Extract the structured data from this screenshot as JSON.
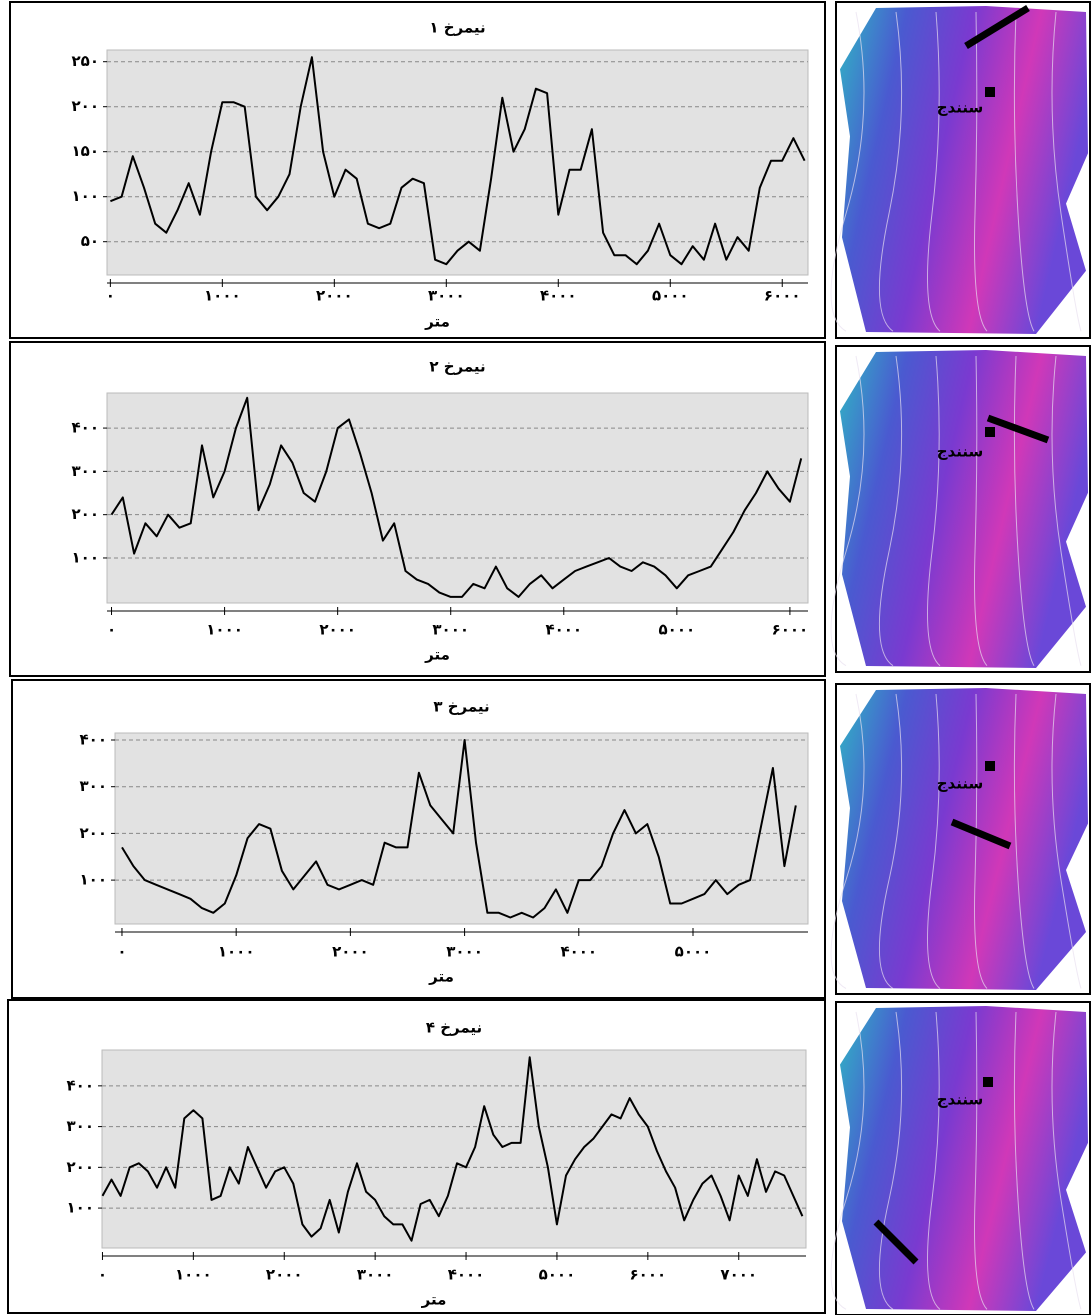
{
  "chart_data": [
    {
      "type": "line",
      "title": "نیمرخ ۱",
      "x_label": "متر",
      "color": "#000000",
      "grid": true,
      "xlim": [
        -30,
        6230
      ],
      "ylim": [
        13,
        263
      ],
      "xticks": [
        {
          "value": 0,
          "label": "۰"
        },
        {
          "value": 1000,
          "label": "۱۰۰۰"
        },
        {
          "value": 2000,
          "label": "۲۰۰۰"
        },
        {
          "value": 3000,
          "label": "۳۰۰۰"
        },
        {
          "value": 4000,
          "label": "۴۰۰۰"
        },
        {
          "value": 5000,
          "label": "۵۰۰۰"
        },
        {
          "value": 6000,
          "label": "۶۰۰۰"
        }
      ],
      "yticks": [
        {
          "value": 50,
          "label": "۵۰"
        },
        {
          "value": 100,
          "label": "۱۰۰"
        },
        {
          "value": 150,
          "label": "۱۵۰"
        },
        {
          "value": 200,
          "label": "۲۰۰"
        },
        {
          "value": 250,
          "label": "۲۵۰"
        }
      ],
      "x": [
        0,
        100,
        200,
        300,
        400,
        500,
        600,
        700,
        800,
        900,
        1000,
        1100,
        1200,
        1300,
        1400,
        1500,
        1600,
        1700,
        1800,
        1900,
        2000,
        2100,
        2200,
        2300,
        2400,
        2500,
        2600,
        2700,
        2800,
        2900,
        3000,
        3100,
        3200,
        3300,
        3400,
        3500,
        3600,
        3700,
        3800,
        3900,
        4000,
        4100,
        4200,
        4300,
        4400,
        4500,
        4600,
        4700,
        4800,
        4900,
        5000,
        5100,
        5200,
        5300,
        5400,
        5500,
        5600,
        5700,
        5800,
        5900,
        6000,
        6100,
        6200
      ],
      "values": [
        95,
        100,
        145,
        110,
        70,
        60,
        85,
        115,
        80,
        150,
        205,
        205,
        200,
        100,
        85,
        100,
        125,
        200,
        255,
        150,
        100,
        130,
        120,
        70,
        65,
        70,
        110,
        120,
        115,
        30,
        25,
        40,
        50,
        40,
        120,
        210,
        150,
        175,
        220,
        215,
        80,
        130,
        130,
        175,
        60,
        35,
        35,
        25,
        40,
        70,
        35,
        25,
        45,
        30,
        70,
        30,
        55,
        40,
        110,
        140,
        140,
        165,
        140
      ]
    },
    {
      "type": "line",
      "title": "نیمرخ ۲",
      "x_label": "متر",
      "color": "#000000",
      "grid": true,
      "xlim": [
        -40,
        6160
      ],
      "ylim": [
        -4,
        481
      ],
      "xticks": [
        {
          "value": 0,
          "label": "۰"
        },
        {
          "value": 1000,
          "label": "۱۰۰۰"
        },
        {
          "value": 2000,
          "label": "۲۰۰۰"
        },
        {
          "value": 3000,
          "label": "۳۰۰۰"
        },
        {
          "value": 4000,
          "label": "۴۰۰۰"
        },
        {
          "value": 5000,
          "label": "۵۰۰۰"
        },
        {
          "value": 6000,
          "label": "۶۰۰۰"
        }
      ],
      "yticks": [
        {
          "value": 100,
          "label": "۱۰۰"
        },
        {
          "value": 200,
          "label": "۲۰۰"
        },
        {
          "value": 300,
          "label": "۳۰۰"
        },
        {
          "value": 400,
          "label": "۴۰۰"
        }
      ],
      "x": [
        0,
        100,
        200,
        300,
        400,
        500,
        600,
        700,
        800,
        900,
        1000,
        1100,
        1200,
        1300,
        1400,
        1500,
        1600,
        1700,
        1800,
        1900,
        2000,
        2100,
        2200,
        2300,
        2400,
        2500,
        2600,
        2700,
        2800,
        2900,
        3000,
        3100,
        3200,
        3300,
        3400,
        3500,
        3600,
        3700,
        3800,
        3900,
        4000,
        4100,
        4200,
        4300,
        4400,
        4500,
        4600,
        4700,
        4800,
        4900,
        5000,
        5100,
        5200,
        5300,
        5400,
        5500,
        5600,
        5700,
        5800,
        5900,
        6000,
        6100
      ],
      "values": [
        200,
        240,
        110,
        180,
        150,
        200,
        170,
        180,
        360,
        240,
        300,
        400,
        470,
        210,
        270,
        360,
        320,
        250,
        230,
        300,
        400,
        420,
        340,
        250,
        140,
        180,
        70,
        50,
        40,
        20,
        10,
        10,
        40,
        30,
        80,
        30,
        10,
        40,
        60,
        30,
        50,
        70,
        80,
        90,
        100,
        80,
        70,
        90,
        80,
        60,
        30,
        60,
        70,
        80,
        120,
        160,
        210,
        250,
        300,
        260,
        230,
        330
      ]
    },
    {
      "type": "line",
      "title": "نیمرخ ۳",
      "x_label": "متر",
      "color": "#000000",
      "grid": true,
      "xlim": [
        -61,
        6007
      ],
      "ylim": [
        6,
        415
      ],
      "xticks": [
        {
          "value": 0,
          "label": "۰"
        },
        {
          "value": 1000,
          "label": "۱۰۰۰"
        },
        {
          "value": 2000,
          "label": "۲۰۰۰"
        },
        {
          "value": 3000,
          "label": "۳۰۰۰"
        },
        {
          "value": 4000,
          "label": "۴۰۰۰"
        },
        {
          "value": 5000,
          "label": "۵۰۰۰"
        }
      ],
      "yticks": [
        {
          "value": 100,
          "label": "۱۰۰"
        },
        {
          "value": 200,
          "label": "۲۰۰"
        },
        {
          "value": 300,
          "label": "۳۰۰"
        },
        {
          "value": 400,
          "label": "۴۰۰"
        }
      ],
      "x": [
        0,
        100,
        200,
        300,
        400,
        500,
        600,
        700,
        800,
        900,
        1000,
        1100,
        1200,
        1300,
        1400,
        1500,
        1600,
        1700,
        1800,
        1900,
        2000,
        2100,
        2200,
        2300,
        2400,
        2500,
        2600,
        2700,
        2800,
        2900,
        3000,
        3100,
        3200,
        3300,
        3400,
        3500,
        3600,
        3700,
        3800,
        3900,
        4000,
        4100,
        4200,
        4300,
        4400,
        4500,
        4600,
        4700,
        4800,
        4900,
        5000,
        5100,
        5200,
        5300,
        5400,
        5500,
        5600,
        5700,
        5800,
        5900
      ],
      "values": [
        170,
        130,
        100,
        90,
        80,
        70,
        60,
        40,
        30,
        50,
        110,
        190,
        220,
        210,
        120,
        80,
        110,
        140,
        90,
        80,
        90,
        100,
        90,
        180,
        170,
        170,
        330,
        260,
        230,
        200,
        400,
        180,
        30,
        30,
        20,
        30,
        20,
        40,
        80,
        30,
        100,
        100,
        130,
        200,
        250,
        200,
        220,
        150,
        50,
        50,
        60,
        70,
        100,
        70,
        90,
        100,
        220,
        340,
        130,
        260
      ]
    },
    {
      "type": "line",
      "title": "نیمرخ ۴",
      "x_label": "متر",
      "color": "#000000",
      "grid": true,
      "xlim": [
        -5,
        7740
      ],
      "ylim": [
        2,
        488
      ],
      "xticks": [
        {
          "value": 0,
          "label": "۰"
        },
        {
          "value": 1000,
          "label": "۱۰۰۰"
        },
        {
          "value": 2000,
          "label": "۲۰۰۰"
        },
        {
          "value": 3000,
          "label": "۳۰۰۰"
        },
        {
          "value": 4000,
          "label": "۴۰۰۰"
        },
        {
          "value": 5000,
          "label": "۵۰۰۰"
        },
        {
          "value": 6000,
          "label": "۶۰۰۰"
        },
        {
          "value": 7000,
          "label": "۷۰۰۰"
        }
      ],
      "yticks": [
        {
          "value": 100,
          "label": "۱۰۰"
        },
        {
          "value": 200,
          "label": "۲۰۰"
        },
        {
          "value": 300,
          "label": "۳۰۰"
        },
        {
          "value": 400,
          "label": "۴۰۰"
        }
      ],
      "x": [
        0,
        100,
        200,
        300,
        400,
        500,
        600,
        700,
        800,
        900,
        1000,
        1100,
        1200,
        1300,
        1400,
        1500,
        1600,
        1700,
        1800,
        1900,
        2000,
        2100,
        2200,
        2300,
        2400,
        2500,
        2600,
        2700,
        2800,
        2900,
        3000,
        3100,
        3200,
        3300,
        3400,
        3500,
        3600,
        3700,
        3800,
        3900,
        4000,
        4100,
        4200,
        4300,
        4400,
        4500,
        4600,
        4700,
        4800,
        4900,
        5000,
        5100,
        5200,
        5300,
        5400,
        5500,
        5600,
        5700,
        5800,
        5900,
        6000,
        6100,
        6200,
        6300,
        6400,
        6500,
        6600,
        6700,
        6800,
        6900,
        7000,
        7100,
        7200,
        7300,
        7400,
        7500,
        7600,
        7700
      ],
      "values": [
        130,
        170,
        130,
        200,
        210,
        190,
        150,
        200,
        150,
        320,
        340,
        320,
        120,
        130,
        200,
        160,
        250,
        200,
        150,
        190,
        200,
        160,
        60,
        30,
        50,
        120,
        40,
        140,
        210,
        140,
        120,
        80,
        60,
        60,
        20,
        110,
        120,
        80,
        130,
        210,
        200,
        250,
        350,
        280,
        250,
        260,
        260,
        470,
        300,
        200,
        60,
        180,
        220,
        250,
        270,
        300,
        330,
        320,
        370,
        330,
        300,
        240,
        190,
        150,
        70,
        120,
        160,
        180,
        130,
        70,
        180,
        130,
        220,
        140,
        190,
        180,
        130,
        80
      ]
    }
  ],
  "maps": [
    {
      "label": "سنندج"
    },
    {
      "label": "سنندج"
    },
    {
      "label": "سنندج"
    },
    {
      "label": "سنندج"
    }
  ]
}
